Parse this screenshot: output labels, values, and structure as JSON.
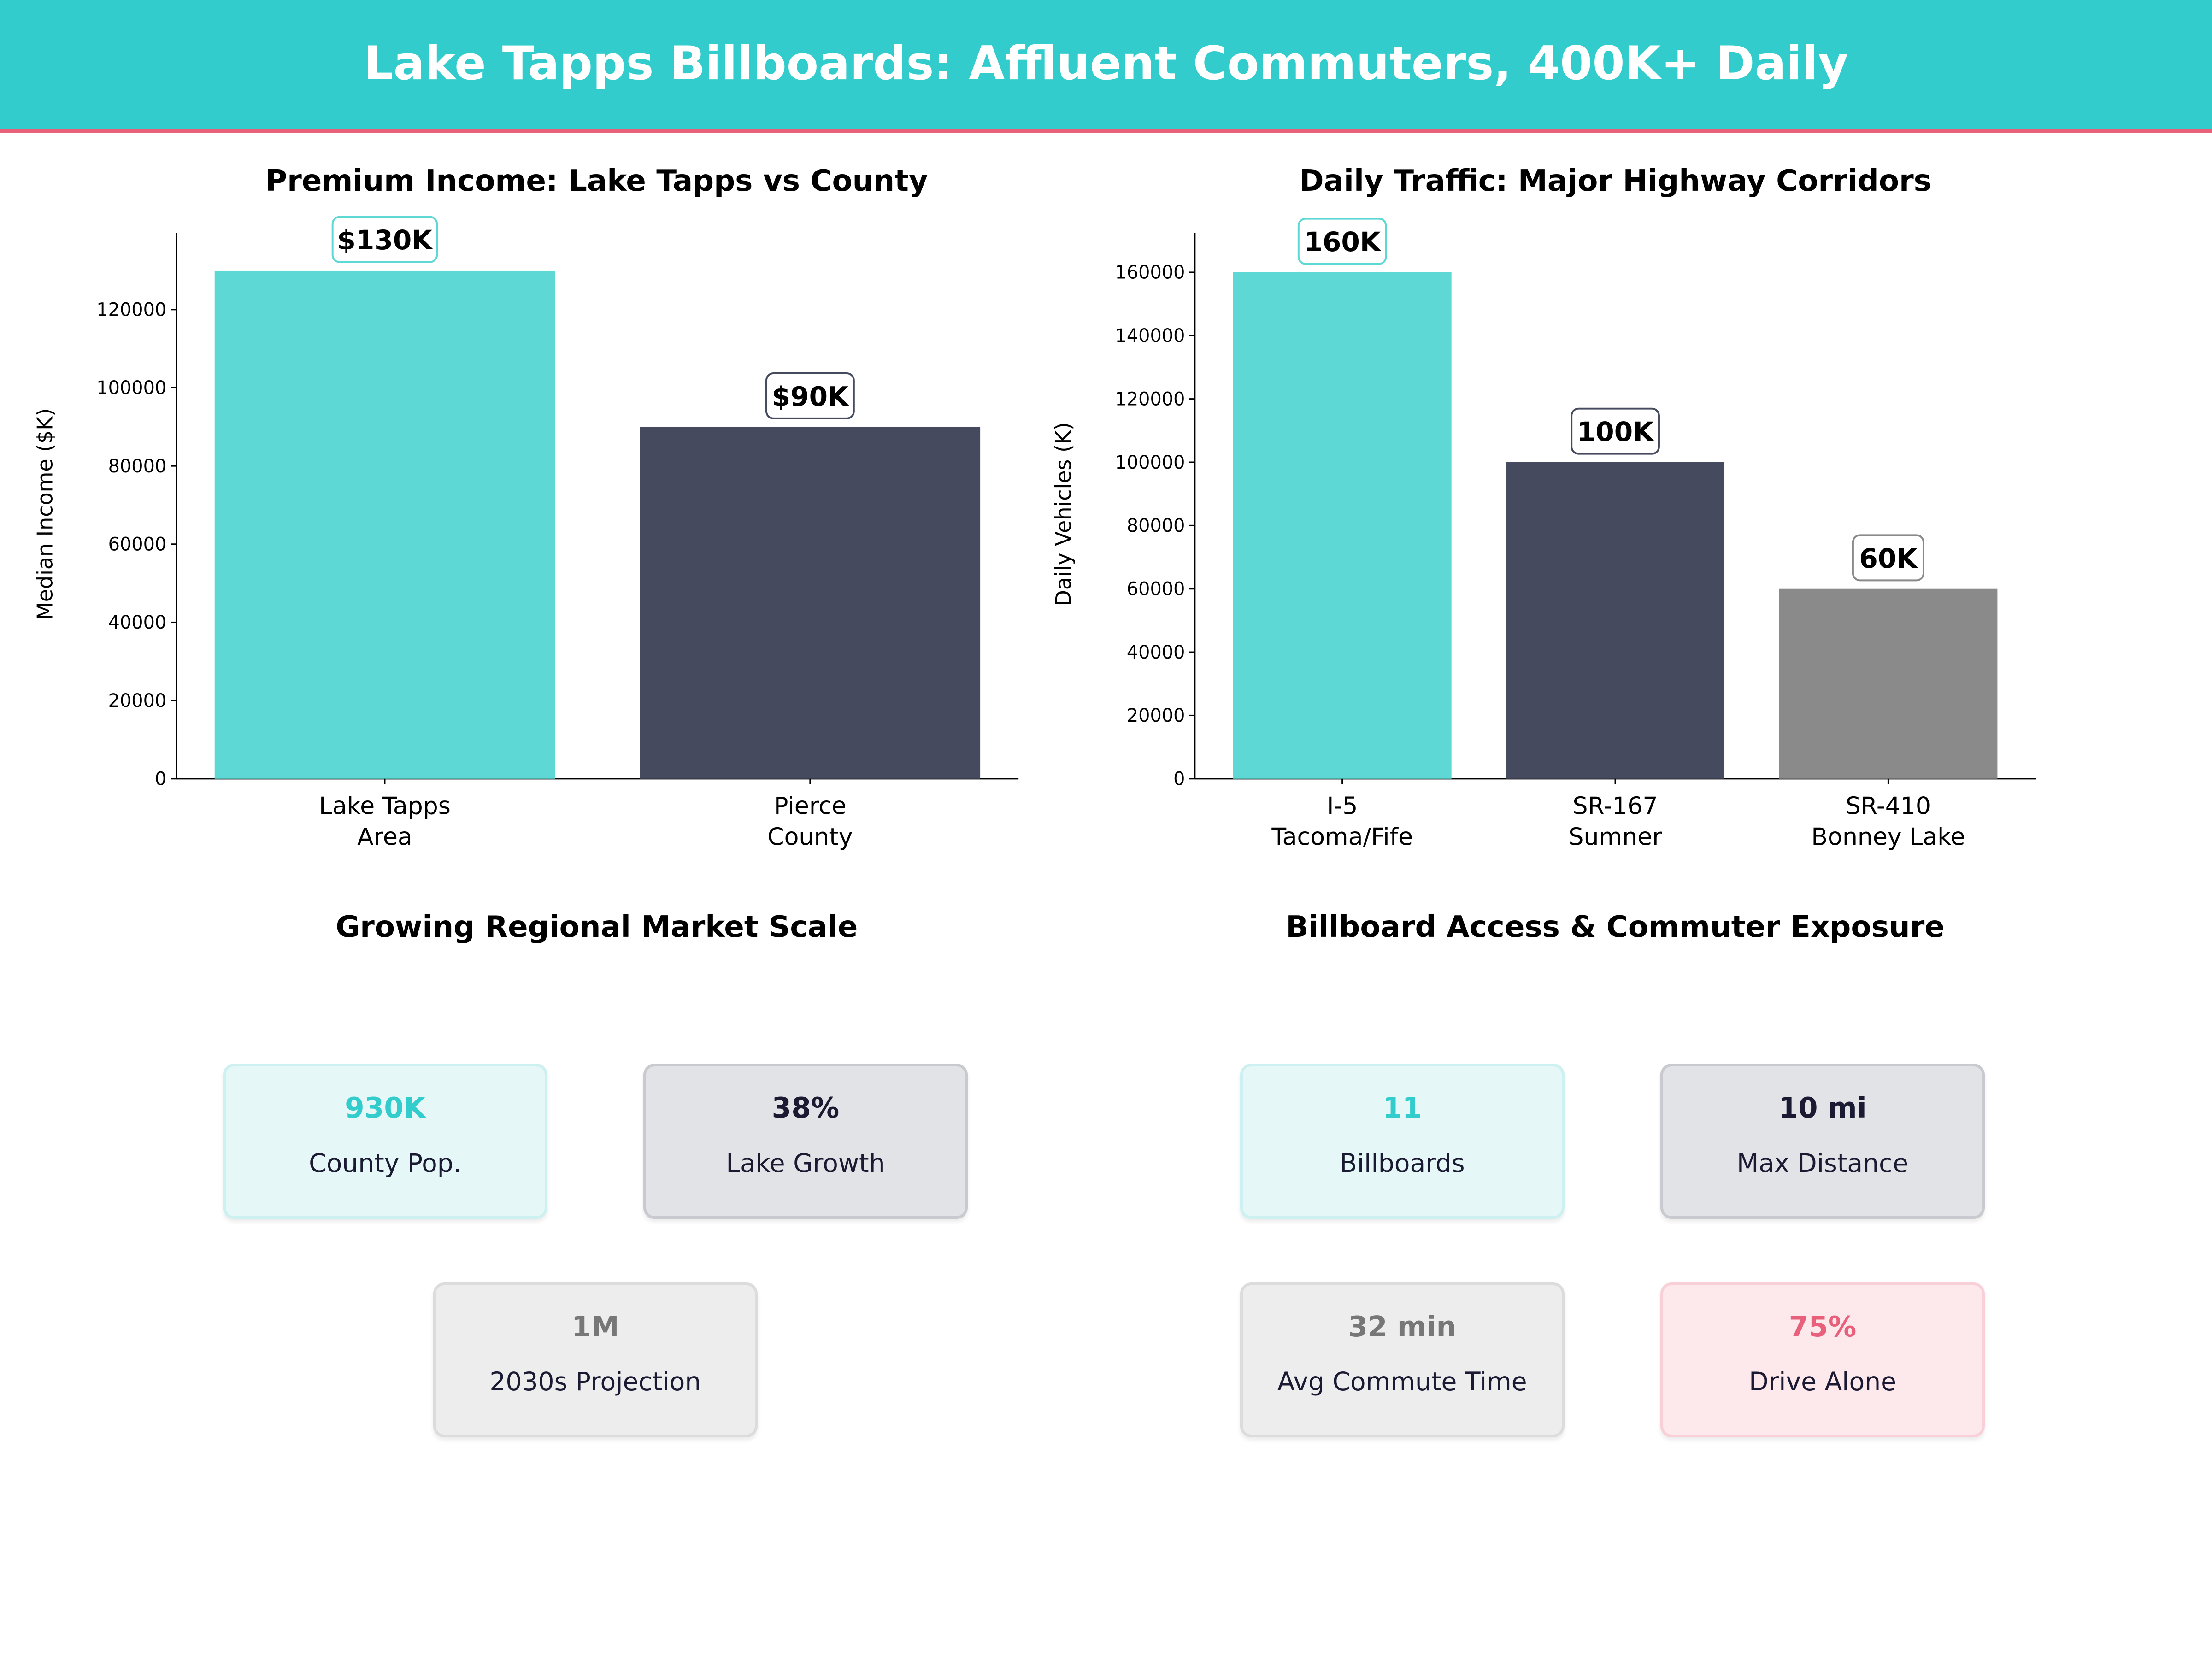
{
  "header": {
    "title": "Lake Tapps Billboards: Affluent Commuters, 400K+ Daily"
  },
  "colors": {
    "teal": "#5DD8D4",
    "dark": "#464A5F",
    "gray": "#8A8A8A",
    "accent": "#33CCCC",
    "red": "#E8607A"
  },
  "chart_data": [
    {
      "type": "bar",
      "title": "Premium Income: Lake Tapps vs County",
      "xlabel": "",
      "ylabel": "Median Income ($K)",
      "categories": [
        "Lake Tapps\nArea",
        "Pierce\nCounty"
      ],
      "values": [
        130000,
        90000
      ],
      "data_labels": [
        "$130K",
        "$90K"
      ],
      "bar_colors": [
        "#5DD8D4",
        "#464A5F"
      ],
      "label_border_colors": [
        "#5DD8D4",
        "#464A5F"
      ],
      "ylim": [
        0,
        139650
      ],
      "yticks": [
        0,
        20000,
        40000,
        60000,
        80000,
        100000,
        120000
      ],
      "grid": false
    },
    {
      "type": "bar",
      "title": "Daily Traffic: Major Highway Corridors",
      "xlabel": "",
      "ylabel": "Daily Vehicles (K)",
      "categories": [
        "I-5\nTacoma/Fife",
        "SR-167\nSumner",
        "SR-410\nBonney Lake"
      ],
      "values": [
        160000,
        100000,
        60000
      ],
      "data_labels": [
        "160K",
        "100K",
        "60K"
      ],
      "bar_colors": [
        "#5DD8D4",
        "#464A5F",
        "#8A8A8A"
      ],
      "label_border_colors": [
        "#5DD8D4",
        "#464A5F",
        "#8A8A8A"
      ],
      "ylim": [
        0,
        172500
      ],
      "yticks": [
        0,
        20000,
        40000,
        60000,
        80000,
        100000,
        120000,
        140000,
        160000
      ],
      "grid": false
    }
  ],
  "market": {
    "title": "Growing Regional Market Scale",
    "cards": [
      {
        "value": "930K",
        "label": "County Pop.",
        "theme": "teal"
      },
      {
        "value": "38%",
        "label": "Lake Growth",
        "theme": "dark"
      },
      {
        "value": "1M",
        "label": "2030s Projection",
        "theme": "gray"
      }
    ]
  },
  "access": {
    "title": "Billboard Access & Commuter Exposure",
    "cards": [
      {
        "value": "11",
        "label": "Billboards",
        "theme": "teal"
      },
      {
        "value": "10 mi",
        "label": "Max Distance",
        "theme": "dark"
      },
      {
        "value": "32 min",
        "label": "Avg Commute Time",
        "theme": "gray"
      },
      {
        "value": "75%",
        "label": "Drive Alone",
        "theme": "pink"
      }
    ]
  }
}
